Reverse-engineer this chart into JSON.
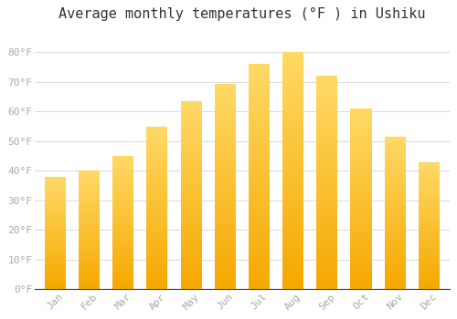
{
  "title": "Average monthly temperatures (°F ) in Ushiku",
  "months": [
    "Jan",
    "Feb",
    "Mar",
    "Apr",
    "May",
    "Jun",
    "Jul",
    "Aug",
    "Sep",
    "Oct",
    "Nov",
    "Dec"
  ],
  "values": [
    38,
    40,
    45,
    55,
    63.5,
    69.5,
    76,
    80,
    72,
    61,
    51.5,
    43
  ],
  "bar_color_bottom": "#F5A800",
  "bar_color_top": "#FFD966",
  "ylim": [
    0,
    88
  ],
  "yticks": [
    0,
    10,
    20,
    30,
    40,
    50,
    60,
    70,
    80
  ],
  "ytick_labels": [
    "0°F",
    "10°F",
    "20°F",
    "30°F",
    "40°F",
    "50°F",
    "60°F",
    "70°F",
    "80°F"
  ],
  "background_color": "#ffffff",
  "plot_bg_color": "#ffffff",
  "grid_color": "#dddddd",
  "title_fontsize": 11,
  "tick_fontsize": 8,
  "tick_color": "#aaaaaa",
  "spine_color": "#333333"
}
